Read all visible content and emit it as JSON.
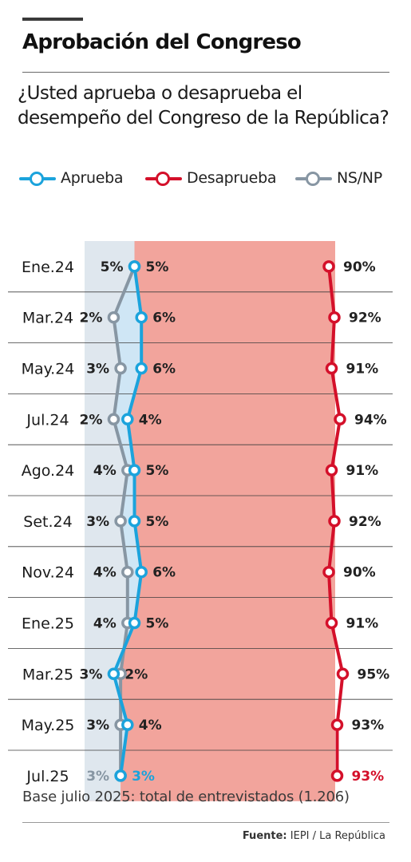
{
  "header": {
    "title": "Aprobación del Congreso",
    "question": "¿Usted aprueba o desaprueba el desempeño del Congreso de la República?"
  },
  "legend": [
    {
      "label": "Aprueba",
      "color": "#1ba3dc"
    },
    {
      "label": "Desaprueba",
      "color": "#d4102a"
    },
    {
      "label": "NS/NP",
      "color": "#8796a3"
    }
  ],
  "chart_data": {
    "type": "line",
    "orientation": "vertical",
    "x": [
      "Ene.24",
      "Mar.24",
      "May.24",
      "Jul.24",
      "Ago.24",
      "Set.24",
      "Nov.24",
      "Ene.25",
      "Mar.25",
      "May.25",
      "Jul.25"
    ],
    "series": [
      {
        "name": "Aprueba",
        "color": "#1ba3dc",
        "values": [
          5,
          6,
          6,
          4,
          5,
          5,
          6,
          5,
          2,
          4,
          3
        ]
      },
      {
        "name": "Desaprueba",
        "color": "#d4102a",
        "values": [
          90,
          92,
          91,
          94,
          91,
          92,
          90,
          91,
          95,
          93,
          93
        ]
      },
      {
        "name": "NS/NP",
        "color": "#8796a3",
        "values": [
          5,
          2,
          3,
          2,
          4,
          3,
          4,
          4,
          3,
          3,
          3
        ]
      }
    ],
    "value_suffix": "%",
    "grid": true,
    "legend_position": "top",
    "background_colors": {
      "nsnp_band": "#dfe7ee",
      "aprueba_band": "#cfe6f5",
      "desaprueba_band": "#f2a49c"
    }
  },
  "footer": {
    "base_note": "Base julio 2025: total de entrevistados (1.206)",
    "source_label": "Fuente:",
    "source_text": "IEPI / La República"
  }
}
